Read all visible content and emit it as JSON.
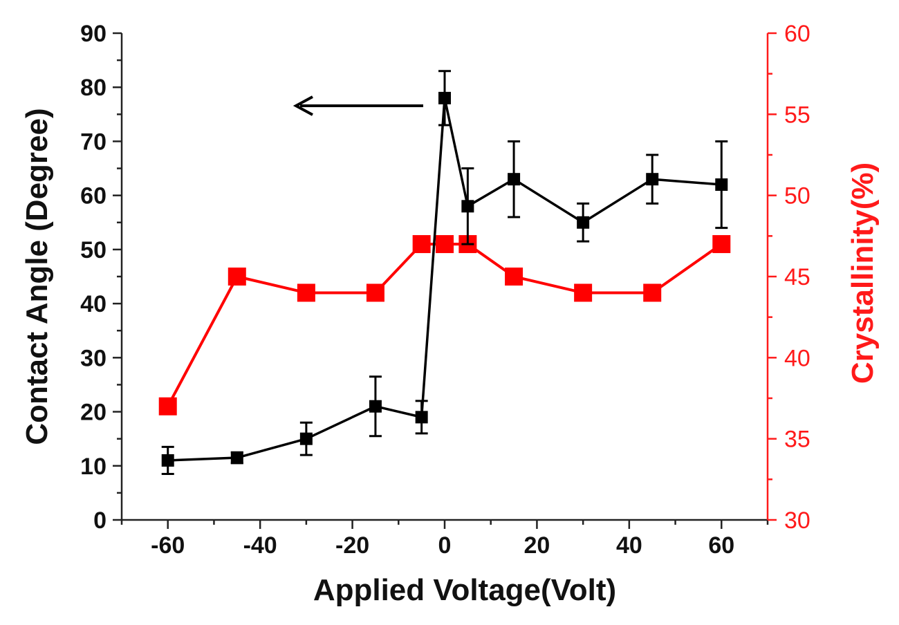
{
  "chart_data": {
    "type": "line",
    "title": "",
    "xlabel": "Applied Voltage(Volt)",
    "ylabel": "Contact Angle (Degree)",
    "y2label": "Crystallinity(%)",
    "xlim": [
      -70,
      70
    ],
    "ylim": [
      0,
      90
    ],
    "y2lim": [
      30,
      60
    ],
    "xticks": [
      "-60",
      "-40",
      "-20",
      "0",
      "20",
      "40",
      "60"
    ],
    "yticks": [
      "0",
      "10",
      "20",
      "30",
      "40",
      "50",
      "60",
      "70",
      "80",
      "90"
    ],
    "y2ticks": [
      "30",
      "35",
      "40",
      "45",
      "50",
      "55",
      "60"
    ],
    "grid": false,
    "colors": {
      "contact_angle": "#000000",
      "crystallinity": "#ff0000",
      "right_axis": "#ff1a1a"
    },
    "series": [
      {
        "name": "Contact Angle",
        "axis": "left",
        "marker": "small-square",
        "x": [
          -60,
          -45,
          -30,
          -15,
          -5,
          0,
          5,
          15,
          30,
          45,
          60
        ],
        "values": [
          11,
          11.5,
          15,
          21,
          19,
          78,
          58,
          63,
          55,
          63,
          62
        ],
        "errors": [
          2.5,
          1,
          3,
          5.5,
          3,
          5,
          7,
          7,
          3.5,
          4.5,
          8
        ]
      },
      {
        "name": "Crystallinity",
        "axis": "right",
        "marker": "large-square",
        "x": [
          -60,
          -45,
          -30,
          -15,
          -5,
          0,
          5,
          15,
          30,
          45,
          60
        ],
        "values": [
          37,
          45,
          44,
          44,
          47,
          47,
          47,
          45,
          44,
          44,
          47
        ]
      }
    ],
    "annotations": [
      {
        "type": "arrow",
        "direction": "left",
        "meaning": "Contact Angle series refers to left axis"
      }
    ]
  }
}
